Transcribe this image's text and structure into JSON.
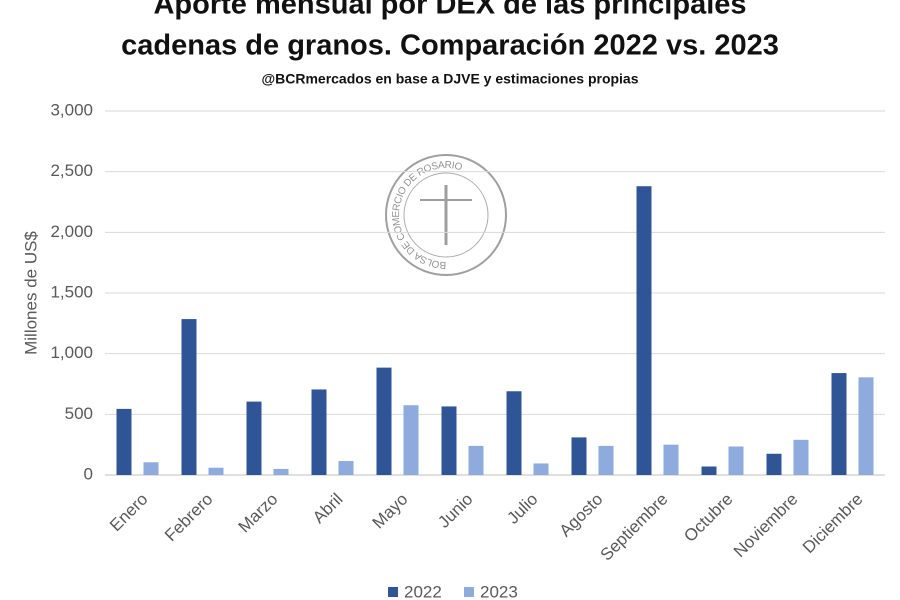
{
  "chart_data": {
    "type": "bar",
    "title": [
      "Aporte mensual por DEX de las principales",
      "cadenas de granos. Comparación 2022 vs. 2023"
    ],
    "subtitle": "@BCRmercados  en base a  DJVE y estimaciones propias",
    "watermark": "BOLSA DE COMERCIO DE ROSARIO",
    "y_label": "Millones de US$",
    "categories": [
      "Enero",
      "Febrero",
      "Marzo",
      "Abril",
      "Mayo",
      "Junio",
      "Julio",
      "Agosto",
      "Septiembre",
      "Octubre",
      "Noviembre",
      "Diciembre"
    ],
    "series": [
      {
        "name": "2022",
        "color": "#2f5597",
        "values": [
          545,
          1285,
          605,
          705,
          885,
          565,
          690,
          310,
          2380,
          70,
          175,
          840
        ]
      },
      {
        "name": "2023",
        "color": "#8faadc",
        "values": [
          105,
          60,
          50,
          115,
          575,
          240,
          95,
          240,
          250,
          235,
          290,
          805
        ]
      }
    ],
    "ylim": [
      0,
      3000
    ],
    "yticks": [
      0,
      500,
      {
        "value": 1000,
        "label": "1,000"
      },
      {
        "value": 1500,
        "label": "1,500"
      },
      {
        "value": 2000,
        "label": "2,000"
      },
      {
        "value": 2500,
        "label": "2,500"
      },
      {
        "value": 3000,
        "label": "3,000"
      }
    ],
    "grid": true,
    "legend": "bottom"
  }
}
